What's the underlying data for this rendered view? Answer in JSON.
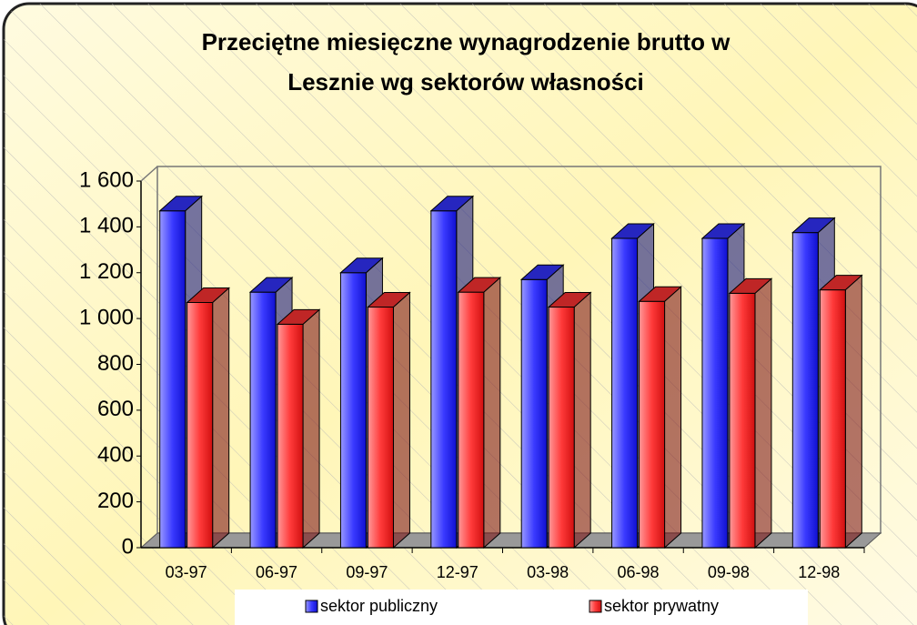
{
  "chart_data": {
    "type": "bar3d",
    "title": [
      "Przeciętne miesięczne wynagrodzenie brutto w",
      "Lesznie wg sektorów własności"
    ],
    "categories": [
      "03-97",
      "06-97",
      "09-97",
      "12-97",
      "03-98",
      "06-98",
      "09-98",
      "12-98"
    ],
    "series": [
      {
        "name": "sektor publiczny",
        "color": "#3333ff",
        "values": [
          1470,
          1115,
          1200,
          1470,
          1170,
          1350,
          1350,
          1375
        ]
      },
      {
        "name": "sektor prywatny",
        "color": "#ff3333",
        "values": [
          1070,
          975,
          1050,
          1115,
          1050,
          1075,
          1110,
          1125
        ]
      }
    ],
    "ylim": [
      0,
      1600
    ],
    "yticks": [
      0,
      200,
      400,
      600,
      800,
      {
        "value": 1000,
        "label": "1 000"
      },
      {
        "value": 1200,
        "label": "1 200"
      },
      {
        "value": 1400,
        "label": "1 400"
      },
      {
        "value": 1600,
        "label": "1 600"
      }
    ]
  }
}
